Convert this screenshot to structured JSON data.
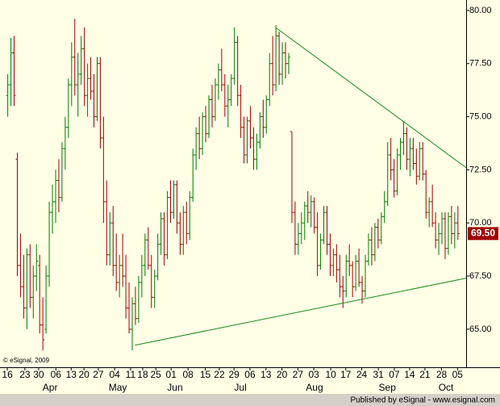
{
  "chart_data": {
    "type": "ohlc",
    "bar_fields": [
      "open",
      "high",
      "low",
      "close"
    ],
    "up_color": "#007a00",
    "down_color": "#a00000",
    "trendline_color": "#1a8a1a",
    "xlim": [
      -2.3,
      143.7
    ],
    "ylim": [
      63.21,
      80.49
    ],
    "yticks": [
      {
        "value": 65,
        "label": "65.00"
      },
      {
        "value": 67.5,
        "label": "67.50"
      },
      {
        "value": 70,
        "label": "70.00"
      },
      {
        "value": 72.5,
        "label": "72.50"
      },
      {
        "value": 75,
        "label": "75.00"
      },
      {
        "value": 77.5,
        "label": "77.50"
      },
      {
        "value": 80,
        "label": "80.00"
      }
    ],
    "xticks": [
      {
        "value": 0,
        "label": "16"
      },
      {
        "value": 5.5,
        "label": "23"
      },
      {
        "value": 9.8,
        "label": "30"
      },
      {
        "value": 15.2,
        "label": "06"
      },
      {
        "value": 20,
        "label": "13"
      },
      {
        "value": 24,
        "label": "20"
      },
      {
        "value": 28.5,
        "label": "27"
      },
      {
        "value": 33.6,
        "label": "04"
      },
      {
        "value": 38.6,
        "label": "11"
      },
      {
        "value": 42.4,
        "label": "18"
      },
      {
        "value": 46.5,
        "label": "25"
      },
      {
        "value": 51.3,
        "label": "01"
      },
      {
        "value": 56.6,
        "label": "08"
      },
      {
        "value": 62,
        "label": "15"
      },
      {
        "value": 66.4,
        "label": "22"
      },
      {
        "value": 71,
        "label": "29"
      },
      {
        "value": 76,
        "label": "06"
      },
      {
        "value": 81,
        "label": "13"
      },
      {
        "value": 86,
        "label": "20"
      },
      {
        "value": 91,
        "label": "27"
      },
      {
        "value": 96,
        "label": "03"
      },
      {
        "value": 101.3,
        "label": "10"
      },
      {
        "value": 106,
        "label": "17"
      },
      {
        "value": 111,
        "label": "24"
      },
      {
        "value": 116.2,
        "label": "31"
      },
      {
        "value": 121.2,
        "label": "07"
      },
      {
        "value": 126,
        "label": "14"
      },
      {
        "value": 130.8,
        "label": "21"
      },
      {
        "value": 136,
        "label": "28"
      },
      {
        "value": 141,
        "label": "05"
      }
    ],
    "months": [
      {
        "value": 13.4,
        "label": "Apr"
      },
      {
        "value": 34.6,
        "label": "May"
      },
      {
        "value": 52.5,
        "label": "Jun"
      },
      {
        "value": 73,
        "label": "Jul"
      },
      {
        "value": 96.2,
        "label": "Aug"
      },
      {
        "value": 119,
        "label": "Sep"
      },
      {
        "value": 137.4,
        "label": "Oct"
      }
    ],
    "last_price": {
      "value": 69.5,
      "label": "69.50"
    },
    "trendlines": [
      {
        "points": [
          [
            84,
            79.2
          ],
          [
            143.7,
            72.6
          ]
        ]
      },
      {
        "points": [
          [
            40,
            64.25
          ],
          [
            143.7,
            67.4
          ]
        ]
      }
    ],
    "copyright": "© eSignal, 2009",
    "footer": "Published by eSignal - www.esignal.com",
    "bars": [
      [
        76,
        77,
        75,
        76.5
      ],
      [
        76.5,
        78.7,
        75.5,
        78
      ],
      [
        78,
        78.8,
        75.5,
        76
      ],
      [
        73,
        73.3,
        67.5,
        68
      ],
      [
        68,
        69.5,
        66.5,
        67
      ],
      [
        67,
        68.5,
        65.5,
        66
      ],
      [
        66,
        68.8,
        65,
        68.5
      ],
      [
        68.5,
        69,
        66,
        66.5
      ],
      [
        66.5,
        68,
        65.5,
        67.5
      ],
      [
        67.5,
        69,
        66.8,
        68.2
      ],
      [
        68,
        68.5,
        64.8,
        65.2
      ],
      [
        65.2,
        66.5,
        64,
        64.5
      ],
      [
        65,
        68,
        64.8,
        67.5
      ],
      [
        67.5,
        71,
        67,
        70.5
      ],
      [
        70.5,
        71.8,
        69.5,
        71
      ],
      [
        71,
        72.5,
        70,
        72
      ],
      [
        72,
        73,
        70.5,
        71.2
      ],
      [
        71.2,
        73.8,
        71,
        73.5
      ],
      [
        73.5,
        75,
        72.5,
        74.5
      ],
      [
        74.5,
        76.8,
        74,
        76.5
      ],
      [
        76.5,
        78.5,
        75.5,
        77.8
      ],
      [
        77.8,
        79.6,
        76,
        76.5
      ],
      [
        76.5,
        78,
        75,
        77
      ],
      [
        77,
        78.8,
        76.5,
        78.2
      ],
      [
        78.2,
        79.2,
        75.5,
        76
      ],
      [
        76,
        77.5,
        75,
        76.8
      ],
      [
        76.8,
        77.8,
        75.8,
        76.2
      ],
      [
        76.2,
        77,
        74.5,
        75
      ],
      [
        75,
        77.8,
        74.8,
        77.5
      ],
      [
        77.5,
        77.8,
        73.5,
        74
      ],
      [
        74,
        75,
        70,
        71
      ],
      [
        71,
        72,
        68,
        68.5
      ],
      [
        68.5,
        70.5,
        68,
        70
      ],
      [
        70,
        70.8,
        67.5,
        68
      ],
      [
        68,
        69.5,
        66.8,
        67.2
      ],
      [
        67.2,
        68.5,
        66.5,
        68
      ],
      [
        68,
        69.5,
        67,
        67.5
      ],
      [
        67.5,
        68.5,
        65.5,
        66
      ],
      [
        66,
        67.2,
        64.8,
        65
      ],
      [
        65,
        66.5,
        64,
        66.2
      ],
      [
        66.2,
        67,
        65.2,
        65.5
      ],
      [
        65.5,
        67.5,
        65.3,
        67.2
      ],
      [
        67.2,
        68.5,
        66.5,
        68
      ],
      [
        68,
        69.5,
        67.5,
        69.2
      ],
      [
        69.2,
        69.8,
        67.8,
        68
      ],
      [
        68,
        68.5,
        66,
        66.5
      ],
      [
        66.5,
        67.8,
        66,
        67.5
      ],
      [
        67.5,
        69.5,
        67.3,
        69
      ],
      [
        69,
        70.5,
        68.5,
        70.2
      ],
      [
        70.2,
        70.5,
        68,
        68.5
      ],
      [
        68.5,
        71.5,
        68.3,
        71.2
      ],
      [
        71.2,
        72,
        70,
        70.5
      ],
      [
        70.5,
        72,
        70.2,
        71.8
      ],
      [
        71.8,
        72,
        69.5,
        70
      ],
      [
        70,
        70.5,
        68.5,
        69
      ],
      [
        69,
        70.8,
        68.5,
        70.5
      ],
      [
        70.5,
        71,
        69,
        69.5
      ],
      [
        69.5,
        71.5,
        69.2,
        71.2
      ],
      [
        71.2,
        73.5,
        71,
        73.2
      ],
      [
        73.2,
        74.5,
        72.5,
        74.2
      ],
      [
        74.2,
        75,
        73,
        73.5
      ],
      [
        73.5,
        75.2,
        73.2,
        75
      ],
      [
        75,
        75.5,
        73.8,
        74.2
      ],
      [
        74.2,
        76,
        74,
        75.8
      ],
      [
        75.8,
        76.5,
        74.5,
        75
      ],
      [
        75,
        76.8,
        74.8,
        76.5
      ],
      [
        76.5,
        77.5,
        75.8,
        77.2
      ],
      [
        77.2,
        78.2,
        76.2,
        76.5
      ],
      [
        76.5,
        77,
        75,
        75.5
      ],
      [
        75.5,
        76.5,
        74.5,
        75.8
      ],
      [
        75.8,
        77,
        75.5,
        76.8
      ],
      [
        76.8,
        79.2,
        76.5,
        78.5
      ],
      [
        78.5,
        78.8,
        75.5,
        76
      ],
      [
        76,
        76.5,
        74,
        74.5
      ],
      [
        74.5,
        75,
        72.8,
        73.2
      ],
      [
        73.2,
        75,
        72.8,
        74.8
      ],
      [
        74.8,
        75.5,
        73.5,
        74
      ],
      [
        74,
        74.5,
        72.5,
        73
      ],
      [
        73,
        74.2,
        72.5,
        73.8
      ],
      [
        73.8,
        75.2,
        73.5,
        75
      ],
      [
        75,
        75.8,
        74,
        74.5
      ],
      [
        74.5,
        76,
        74.2,
        75.8
      ],
      [
        75.8,
        78,
        75.5,
        77.5
      ],
      [
        77.5,
        78.8,
        76,
        76.5
      ],
      [
        76.5,
        79.3,
        76.2,
        78.8
      ],
      [
        78.8,
        79,
        76.5,
        77
      ],
      [
        77,
        78.5,
        76.5,
        78
      ],
      [
        78,
        78.5,
        76.8,
        77.5
      ],
      [
        77.5,
        78,
        77,
        77.8
      ],
      [
        74.3,
        74.3,
        70,
        70.5
      ],
      [
        70.5,
        71,
        68.5,
        69
      ],
      [
        69,
        70,
        68.5,
        69.5
      ],
      [
        69.5,
        70.5,
        69,
        70
      ],
      [
        70,
        71,
        69.2,
        70.8
      ],
      [
        70.8,
        71.5,
        70,
        70.5
      ],
      [
        70.5,
        71.3,
        69.8,
        71
      ],
      [
        71,
        71.2,
        69.5,
        69.8
      ],
      [
        69.8,
        70.5,
        67.5,
        68
      ],
      [
        68,
        69.5,
        67.8,
        69.2
      ],
      [
        69.2,
        70.8,
        69,
        70.5
      ],
      [
        70.5,
        70.8,
        68.5,
        69
      ],
      [
        69,
        69.5,
        67.5,
        68
      ],
      [
        68,
        68.8,
        67.5,
        68.5
      ],
      [
        68.5,
        69,
        67.2,
        67.8
      ],
      [
        67.8,
        68.5,
        66.5,
        67
      ],
      [
        67,
        67.5,
        66,
        66.8
      ],
      [
        66.8,
        68.5,
        66.5,
        68.2
      ],
      [
        68.2,
        69,
        67.5,
        68
      ],
      [
        68,
        68.2,
        66.5,
        67
      ],
      [
        67,
        68.5,
        66.8,
        68.2
      ],
      [
        68.2,
        68.8,
        67,
        67.2
      ],
      [
        67.2,
        67.5,
        66.2,
        66.8
      ],
      [
        66.8,
        68.5,
        66.5,
        68.2
      ],
      [
        68.2,
        69.5,
        68,
        69.2
      ],
      [
        69.2,
        69.8,
        68,
        68.5
      ],
      [
        68.5,
        70,
        68.2,
        69.8
      ],
      [
        69.8,
        70.2,
        68.8,
        69.2
      ],
      [
        69.2,
        70.5,
        69,
        70.3
      ],
      [
        70.3,
        71.5,
        70,
        71
      ],
      [
        71,
        73.8,
        70.8,
        73.2
      ],
      [
        73.2,
        74,
        72,
        72.5
      ],
      [
        72.5,
        73,
        71.2,
        71.5
      ],
      [
        71.5,
        73.5,
        71.3,
        73.2
      ],
      [
        73.2,
        74,
        72.5,
        73.8
      ],
      [
        73.8,
        74.8,
        73.2,
        74.2
      ],
      [
        74.2,
        74.5,
        72.5,
        73
      ],
      [
        73,
        74,
        72.2,
        73.5
      ],
      [
        73.5,
        74,
        72.5,
        72.8
      ],
      [
        72.8,
        73.5,
        71.8,
        72.2
      ],
      [
        72.2,
        73.8,
        72,
        73.5
      ],
      [
        73.5,
        73.8,
        72,
        72.3
      ],
      [
        72.3,
        72.5,
        70.2,
        70.5
      ],
      [
        70.5,
        71.2,
        69.8,
        71
      ],
      [
        71,
        71.8,
        69.8,
        70
      ],
      [
        70,
        70.5,
        68.8,
        69.2
      ],
      [
        69.2,
        70,
        68.5,
        69.5
      ],
      [
        69.5,
        70.5,
        69,
        70.2
      ],
      [
        70.2,
        70.5,
        68.3,
        68.8
      ],
      [
        68.8,
        70.5,
        68.5,
        70.3
      ],
      [
        70.3,
        70.8,
        69,
        69.5
      ],
      [
        69.5,
        70.5,
        68.8,
        70
      ],
      [
        70,
        70.8,
        69.2,
        69.5
      ]
    ]
  }
}
